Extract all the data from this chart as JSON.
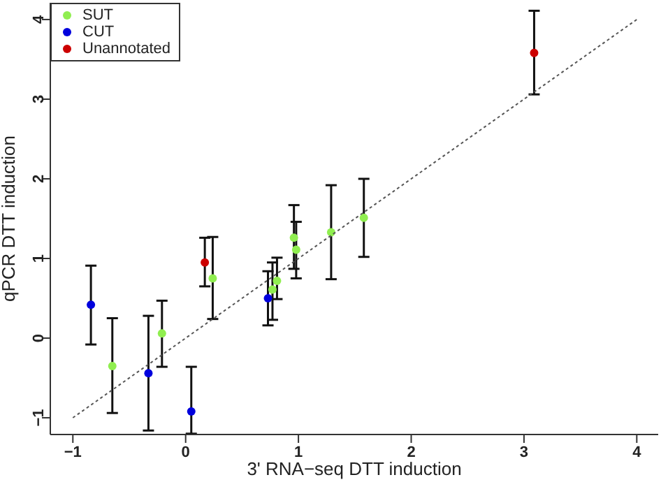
{
  "chart_data": {
    "type": "scatter",
    "xlabel": "3' RNA−seq DTT induction",
    "ylabel": "qPCR DTT induction",
    "xlim": [
      -1.2,
      4.19
    ],
    "ylim": [
      -1.21,
      4.21
    ],
    "xticks": [
      {
        "value": -1,
        "label": "−1"
      },
      0,
      1,
      2,
      3,
      4
    ],
    "yticks": [
      {
        "value": -1,
        "label": "−1"
      },
      0,
      1,
      2,
      3,
      4
    ],
    "grid": false,
    "legend": "top left",
    "marker": "circle",
    "series": [
      {
        "name": "SUT",
        "color": "#90ee50",
        "x": [
          -0.65,
          -0.21,
          0.24,
          0.77,
          0.81,
          0.96,
          0.98,
          1.29,
          1.58
        ],
        "values": [
          -0.35,
          0.06,
          0.75,
          0.61,
          0.72,
          1.26,
          1.11,
          1.33,
          1.51
        ],
        "errors": [
          [
            -0.94,
            0.25
          ],
          [
            -0.36,
            0.47
          ],
          [
            0.24,
            1.27
          ],
          [
            0.23,
            0.95
          ],
          [
            0.49,
            1.01
          ],
          [
            0.87,
            1.67
          ],
          [
            0.75,
            1.46
          ],
          [
            0.74,
            1.92
          ],
          [
            1.02,
            2.0
          ]
        ]
      },
      {
        "name": "CUT",
        "color": "#0000dd",
        "x": [
          -0.84,
          -0.33,
          0.05,
          0.73
        ],
        "values": [
          0.42,
          -0.44,
          -0.92,
          0.5
        ],
        "errors": [
          [
            -0.08,
            0.91
          ],
          [
            -1.16,
            0.28
          ],
          [
            -1.2,
            -0.36
          ],
          [
            0.16,
            0.84
          ]
        ]
      },
      {
        "name": "Unannotated",
        "color": "#cc0000",
        "x": [
          0.17,
          3.09
        ],
        "values": [
          0.95,
          3.58
        ],
        "errors": [
          [
            0.65,
            1.26
          ],
          [
            3.06,
            4.11
          ]
        ]
      },
      {
        "type": "line",
        "color": "#555555",
        "line_style": "dotted",
        "marker": "none",
        "x": [
          -1,
          4
        ],
        "values": [
          -1,
          4
        ]
      }
    ]
  }
}
